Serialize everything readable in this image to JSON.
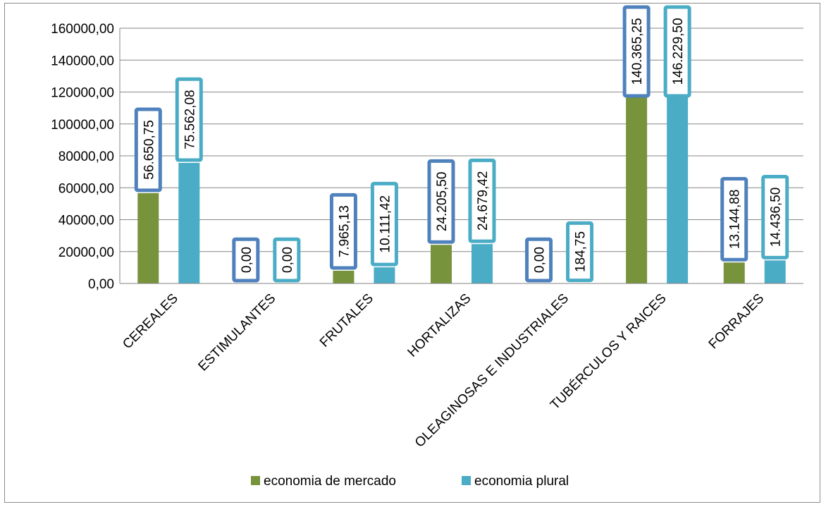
{
  "chart_data": {
    "type": "bar",
    "categories": [
      "CEREALES",
      "ESTIMULANTES",
      "FRUTALES",
      "HORTALIZAS",
      "OLEAGINOSAS E INDUSTRIALES",
      "TUBÉRCULOS Y RAICES",
      "FORRAJES"
    ],
    "series": [
      {
        "name": "economia de mercado",
        "color": "#77933c",
        "label_border": "#4f81bd",
        "values": [
          56650.75,
          0,
          7965.13,
          24205.5,
          0,
          140365.25,
          13144.88
        ],
        "labels": [
          "56.650,75",
          "0,00",
          "7.965,13",
          "24.205,50",
          "0,00",
          "140.365,25",
          "13.144,88"
        ]
      },
      {
        "name": "economia plural",
        "color": "#4bacc6",
        "label_border": "#4bacc6",
        "values": [
          75562.08,
          0,
          10111.42,
          24679.42,
          184.75,
          146229.5,
          14436.5
        ],
        "labels": [
          "75.562,08",
          "0,00",
          "10.111,42",
          "24.679,42",
          "184,75",
          "146.229,50",
          "14.436,50"
        ]
      }
    ],
    "yticks": [
      "0,00",
      "20000,00",
      "40000,00",
      "60000,00",
      "80000,00",
      "100000,00",
      "120000,00",
      "140000,00",
      "160000,00"
    ],
    "ylim": [
      0,
      160000
    ],
    "grid": true,
    "legend_position": "bottom",
    "title": "",
    "xlabel": "",
    "ylabel": ""
  }
}
